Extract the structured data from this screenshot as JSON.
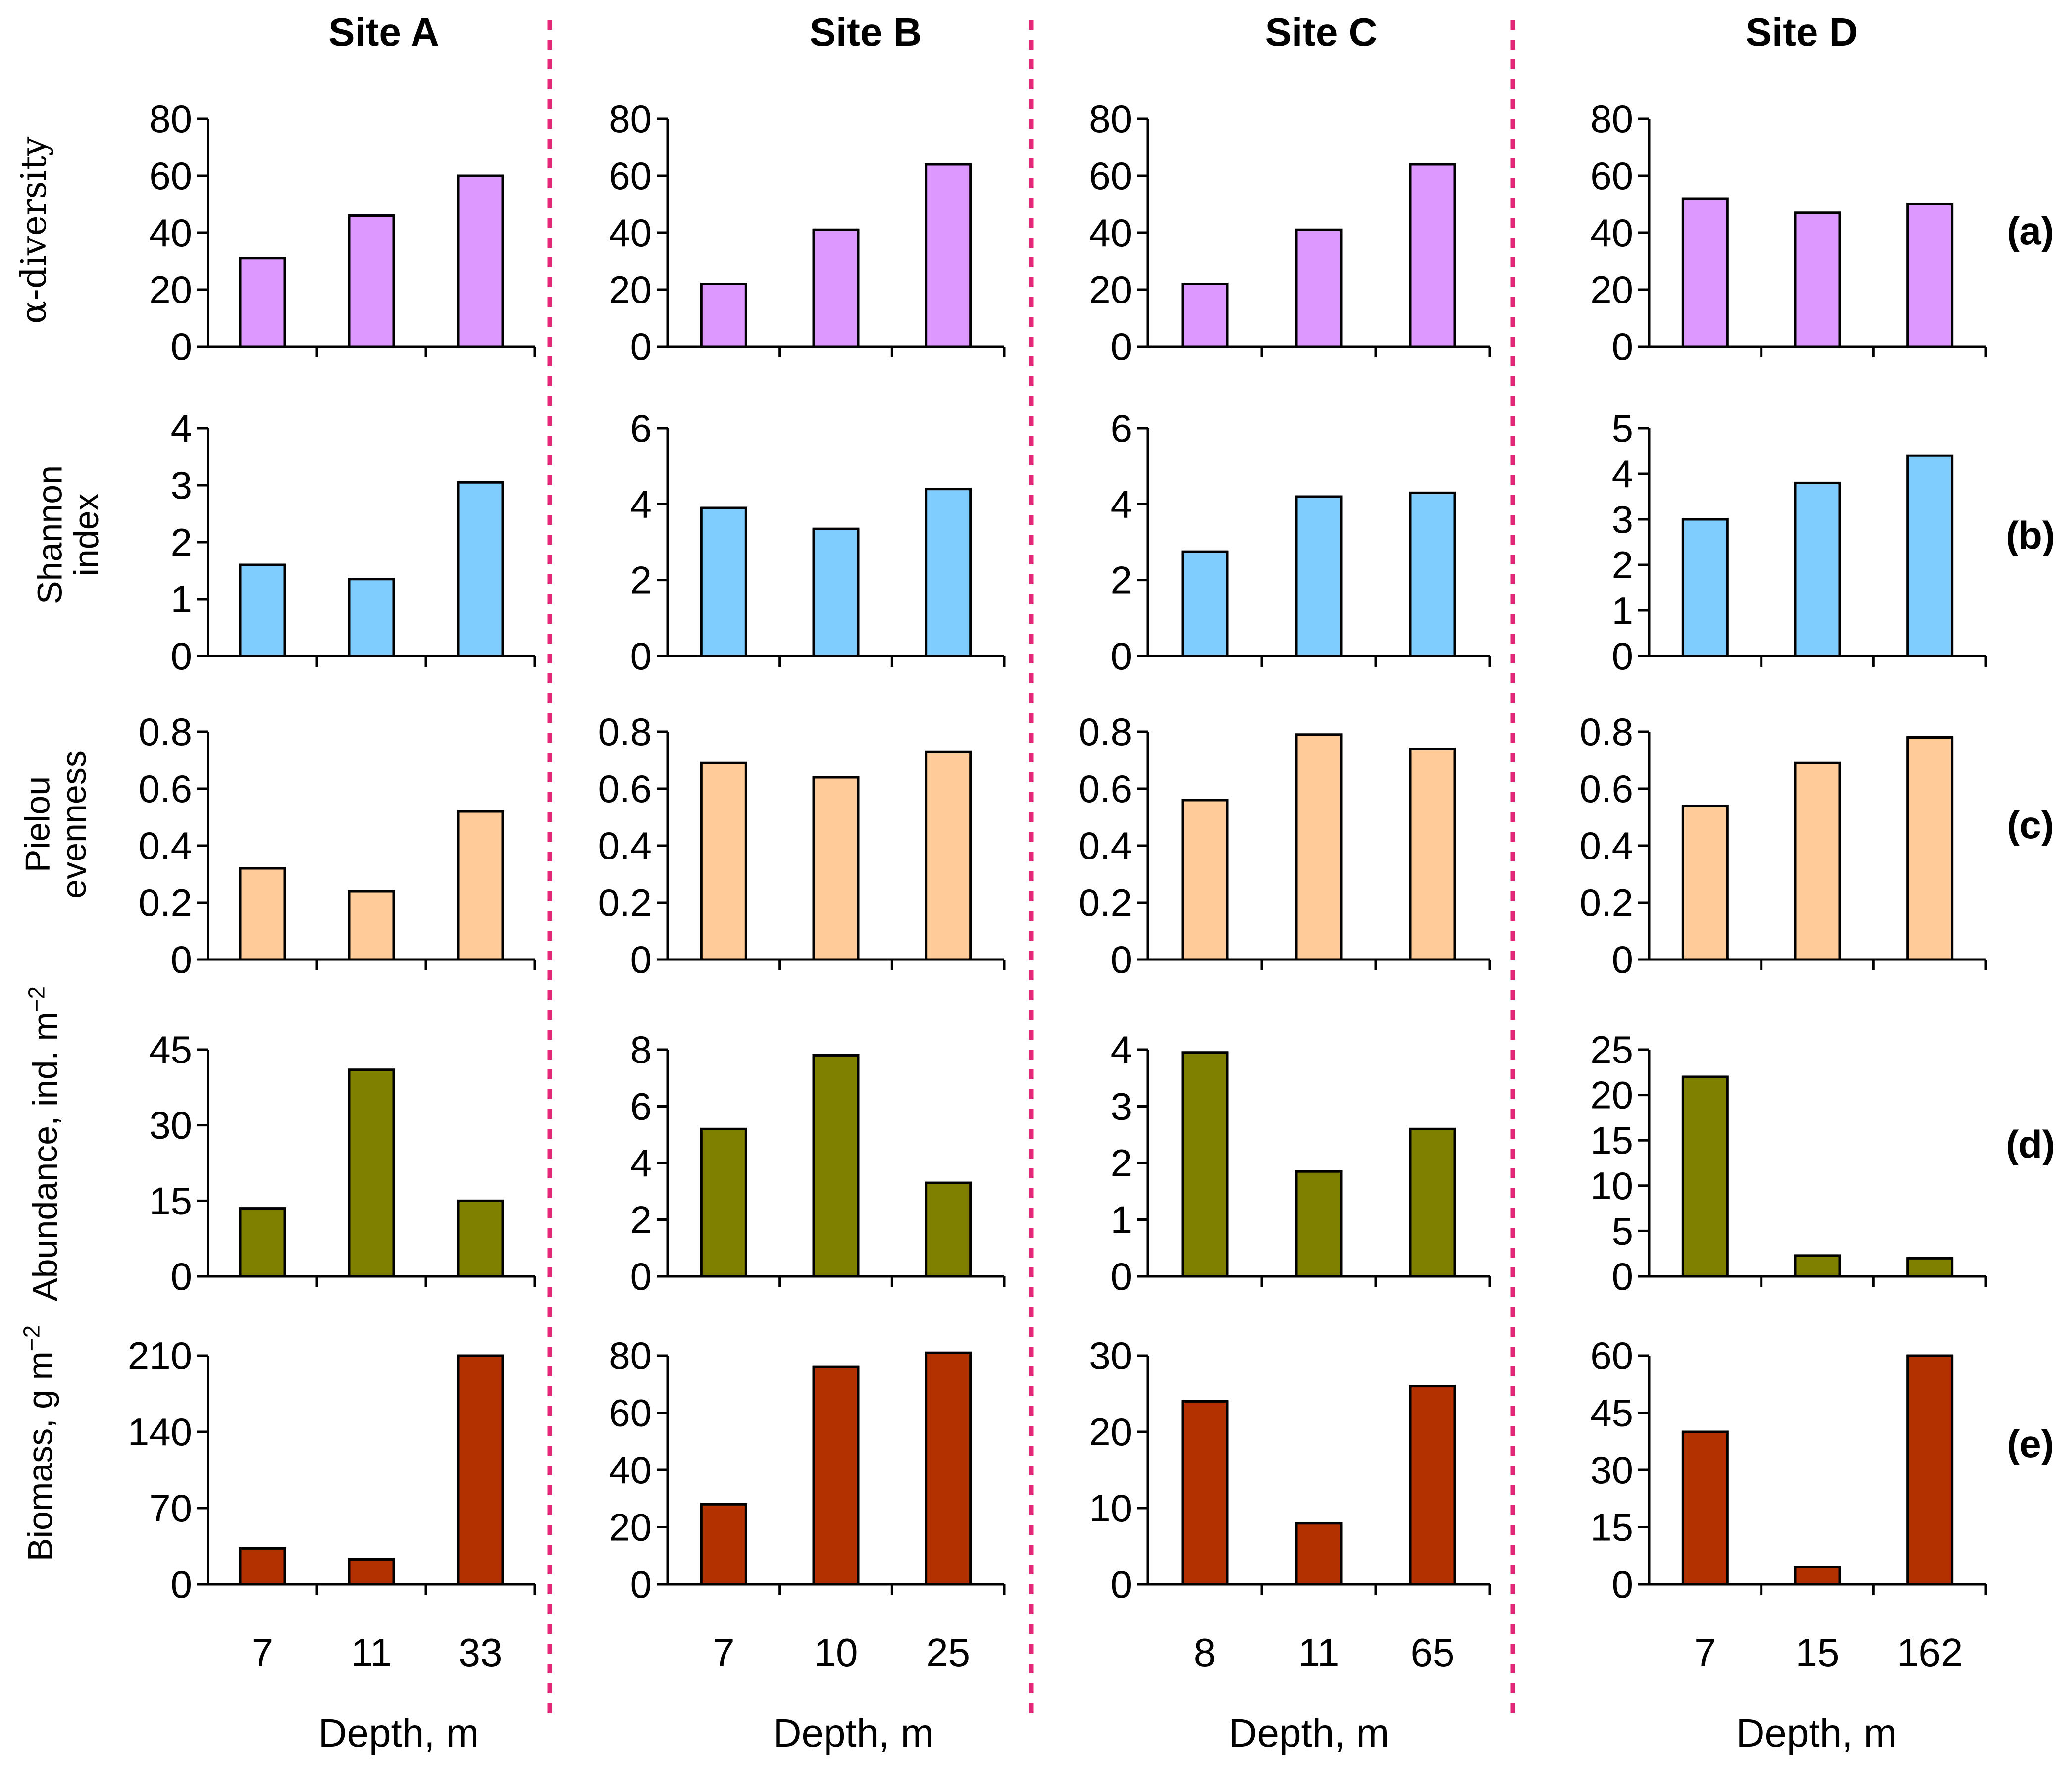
{
  "chart_data": {
    "type": "bar",
    "title": "",
    "sites": [
      "Site A",
      "Site B",
      "Site C",
      "Site D"
    ],
    "categories": {
      "Site A": [
        "7",
        "11",
        "33"
      ],
      "Site B": [
        "7",
        "10",
        "25"
      ],
      "Site C": [
        "8",
        "11",
        "65"
      ],
      "Site D": [
        "7",
        "15",
        "162"
      ]
    },
    "xlabel": "Depth, m",
    "rows": [
      {
        "panel_label": "(a)",
        "ylabel": "α-diversity",
        "color": "#dd99ff",
        "ylim": {
          "Site A": [
            0,
            80
          ],
          "Site B": [
            0,
            80
          ],
          "Site C": [
            0,
            80
          ],
          "Site D": [
            0,
            80
          ]
        },
        "yticks": {
          "Site A": [
            "0",
            "20",
            "40",
            "60",
            "80"
          ],
          "Site B": [
            "0",
            "20",
            "40",
            "60",
            "80"
          ],
          "Site C": [
            "0",
            "20",
            "40",
            "60",
            "80"
          ],
          "Site D": [
            "0",
            "20",
            "40",
            "60",
            "80"
          ]
        },
        "values": {
          "Site A": [
            31,
            46,
            60
          ],
          "Site B": [
            22,
            41,
            64
          ],
          "Site C": [
            22,
            41,
            64
          ],
          "Site D": [
            52,
            47,
            50
          ]
        }
      },
      {
        "panel_label": "(b)",
        "ylabel": "Shannon index",
        "color": "#7fccff",
        "ylim": {
          "Site A": [
            0,
            4
          ],
          "Site B": [
            0,
            6
          ],
          "Site C": [
            0,
            6
          ],
          "Site D": [
            0,
            5
          ]
        },
        "yticks": {
          "Site A": [
            "0",
            "1",
            "2",
            "3",
            "4"
          ],
          "Site B": [
            "0",
            "2",
            "4",
            "6"
          ],
          "Site C": [
            "0",
            "2",
            "4",
            "6"
          ],
          "Site D": [
            "0",
            "1",
            "2",
            "3",
            "4",
            "5"
          ]
        },
        "values": {
          "Site A": [
            1.6,
            1.35,
            3.05
          ],
          "Site B": [
            3.9,
            3.35,
            4.4
          ],
          "Site C": [
            2.75,
            4.2,
            4.3
          ],
          "Site D": [
            3.0,
            3.8,
            4.4
          ]
        }
      },
      {
        "panel_label": "(c)",
        "ylabel": "Pielou evenness",
        "color": "#ffcc99",
        "ylim": {
          "Site A": [
            0,
            0.8
          ],
          "Site B": [
            0,
            0.8
          ],
          "Site C": [
            0,
            0.8
          ],
          "Site D": [
            0,
            0.8
          ]
        },
        "yticks": {
          "Site A": [
            "0",
            "0.2",
            "0.4",
            "0.6",
            "0.8"
          ],
          "Site B": [
            "0",
            "0.2",
            "0.4",
            "0.6",
            "0.8"
          ],
          "Site C": [
            "0",
            "0.2",
            "0.4",
            "0.6",
            "0.8"
          ],
          "Site D": [
            "0",
            "0.2",
            "0.4",
            "0.6",
            "0.8"
          ]
        },
        "values": {
          "Site A": [
            0.32,
            0.24,
            0.52
          ],
          "Site B": [
            0.69,
            0.64,
            0.73
          ],
          "Site C": [
            0.56,
            0.79,
            0.74
          ],
          "Site D": [
            0.54,
            0.69,
            0.78
          ]
        }
      },
      {
        "panel_label": "(d)",
        "ylabel": "Abundance, ind. m",
        "ylabel_sup": "−2",
        "color": "#808000",
        "ylim": {
          "Site A": [
            0,
            45
          ],
          "Site B": [
            0,
            8
          ],
          "Site C": [
            0,
            4
          ],
          "Site D": [
            0,
            25
          ]
        },
        "yticks": {
          "Site A": [
            "0",
            "15",
            "30",
            "45"
          ],
          "Site B": [
            "0",
            "2",
            "4",
            "6",
            "8"
          ],
          "Site C": [
            "0",
            "1",
            "2",
            "3",
            "4"
          ],
          "Site D": [
            "0",
            "5",
            "10",
            "15",
            "20",
            "25"
          ]
        },
        "values": {
          "Site A": [
            13.5,
            41,
            15
          ],
          "Site B": [
            5.2,
            7.8,
            3.3
          ],
          "Site C": [
            3.95,
            1.85,
            2.6
          ],
          "Site D": [
            22,
            2.3,
            2
          ]
        }
      },
      {
        "panel_label": "(e)",
        "ylabel": "Biomass, g m",
        "ylabel_sup": "−2",
        "color": "#b33000",
        "ylim": {
          "Site A": [
            0,
            210
          ],
          "Site B": [
            0,
            80
          ],
          "Site C": [
            0,
            30
          ],
          "Site D": [
            0,
            60
          ]
        },
        "yticks": {
          "Site A": [
            "0",
            "70",
            "140",
            "210"
          ],
          "Site B": [
            "0",
            "20",
            "40",
            "60",
            "80"
          ],
          "Site C": [
            "0",
            "10",
            "20",
            "30"
          ],
          "Site D": [
            "0",
            "15",
            "30",
            "45",
            "60"
          ]
        },
        "values": {
          "Site A": [
            33,
            23,
            210
          ],
          "Site B": [
            28,
            76,
            81
          ],
          "Site C": [
            24,
            8,
            26
          ],
          "Site D": [
            40,
            4.5,
            60
          ]
        }
      }
    ]
  }
}
